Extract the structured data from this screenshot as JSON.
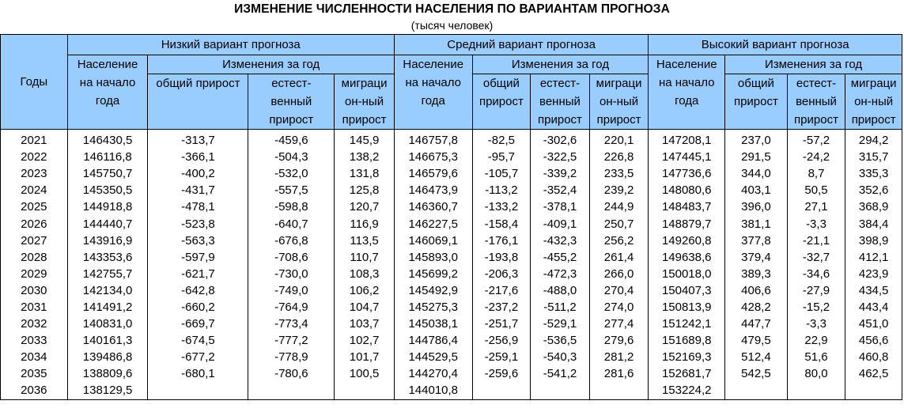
{
  "title": "ИЗМЕНЕНИЕ ЧИСЛЕННОСТИ НАСЕЛЕНИЯ ПО ВАРИАНТАМ ПРОГНОЗА",
  "subtitle": "(тысяч человек)",
  "header": {
    "years": "Годы",
    "variants": [
      "Низкий вариант прогноза",
      "Средний вариант прогноза",
      "Высокий вариант прогноза"
    ],
    "population": [
      "Население",
      "на начало",
      "года"
    ],
    "changes": "Изменения за год",
    "low_cols": {
      "total": [
        "общий прирост"
      ],
      "natural": [
        "естест-",
        "венный",
        "прирост"
      ],
      "migration": [
        "миграци",
        "он-ный",
        "прирост"
      ]
    },
    "mid_cols": {
      "total": [
        "общий",
        "прирост"
      ],
      "natural": [
        "естест-",
        "венный",
        "прирост"
      ],
      "migration": [
        "миграци",
        "он-ный",
        "прирост"
      ]
    },
    "high_cols": {
      "total": [
        "общий",
        "прирост"
      ],
      "natural": [
        "естест-",
        "венный",
        "прирост"
      ],
      "migration": [
        "миграци",
        "он-ный",
        "прирост"
      ]
    }
  },
  "rows": [
    [
      "2021",
      "146430,5",
      "-313,7",
      "-459,6",
      "145,9",
      "146757,8",
      "-82,5",
      "-302,6",
      "220,1",
      "147208,1",
      "237,0",
      "-57,2",
      "294,2"
    ],
    [
      "2022",
      "146116,8",
      "-366,1",
      "-504,3",
      "138,2",
      "146675,3",
      "-95,7",
      "-322,5",
      "226,8",
      "147445,1",
      "291,5",
      "-24,2",
      "315,7"
    ],
    [
      "2023",
      "145750,7",
      "-400,2",
      "-532,0",
      "131,8",
      "146579,6",
      "-105,7",
      "-339,2",
      "233,5",
      "147736,6",
      "344,0",
      "8,7",
      "335,3"
    ],
    [
      "2024",
      "145350,5",
      "-431,7",
      "-557,5",
      "125,8",
      "146473,9",
      "-113,2",
      "-352,4",
      "239,2",
      "148080,6",
      "403,1",
      "50,5",
      "352,6"
    ],
    [
      "2025",
      "144918,8",
      "-478,1",
      "-598,8",
      "120,7",
      "146360,7",
      "-133,2",
      "-378,1",
      "244,9",
      "148483,7",
      "396,0",
      "27,1",
      "368,9"
    ],
    [
      "2026",
      "144440,7",
      "-523,8",
      "-640,7",
      "116,9",
      "146227,5",
      "-158,4",
      "-409,1",
      "250,7",
      "148879,7",
      "381,1",
      "-3,3",
      "384,4"
    ],
    [
      "2027",
      "143916,9",
      "-563,3",
      "-676,8",
      "113,5",
      "146069,1",
      "-176,1",
      "-432,3",
      "256,2",
      "149260,8",
      "377,8",
      "-21,1",
      "398,9"
    ],
    [
      "2028",
      "143353,6",
      "-597,9",
      "-708,6",
      "110,7",
      "145893,0",
      "-193,8",
      "-455,2",
      "261,4",
      "149638,6",
      "379,4",
      "-32,7",
      "412,1"
    ],
    [
      "2029",
      "142755,7",
      "-621,7",
      "-730,0",
      "108,3",
      "145699,2",
      "-206,3",
      "-472,3",
      "266,0",
      "150018,0",
      "389,3",
      "-34,6",
      "423,9"
    ],
    [
      "2030",
      "142134,0",
      "-642,8",
      "-749,0",
      "106,2",
      "145492,9",
      "-217,6",
      "-488,0",
      "270,4",
      "150407,3",
      "406,6",
      "-27,9",
      "434,5"
    ],
    [
      "2031",
      "141491,2",
      "-660,2",
      "-764,9",
      "104,7",
      "145275,3",
      "-237,2",
      "-511,2",
      "274,0",
      "150813,9",
      "428,2",
      "-15,2",
      "443,4"
    ],
    [
      "2032",
      "140831,0",
      "-669,7",
      "-773,4",
      "103,7",
      "145038,1",
      "-251,7",
      "-529,1",
      "277,4",
      "151242,1",
      "447,7",
      "-3,3",
      "451,0"
    ],
    [
      "2033",
      "140161,3",
      "-674,5",
      "-777,2",
      "102,7",
      "144786,4",
      "-256,9",
      "-536,5",
      "279,6",
      "151689,8",
      "479,5",
      "22,9",
      "456,6"
    ],
    [
      "2034",
      "139486,8",
      "-677,2",
      "-778,9",
      "101,7",
      "144529,5",
      "-259,1",
      "-540,3",
      "281,2",
      "152169,3",
      "512,4",
      "51,6",
      "460,8"
    ],
    [
      "2035",
      "138809,6",
      "-680,1",
      "-780,6",
      "100,5",
      "144270,4",
      "-259,6",
      "-541,2",
      "281,6",
      "152681,7",
      "542,5",
      "80,0",
      "462,5"
    ],
    [
      "2036",
      "138129,5",
      "",
      "",
      "",
      "144010,8",
      "",
      "",
      "",
      "153224,2",
      "",
      "",
      ""
    ]
  ],
  "colors": {
    "header_bg": "#99ccff",
    "border": "#000000",
    "text": "#000000"
  }
}
